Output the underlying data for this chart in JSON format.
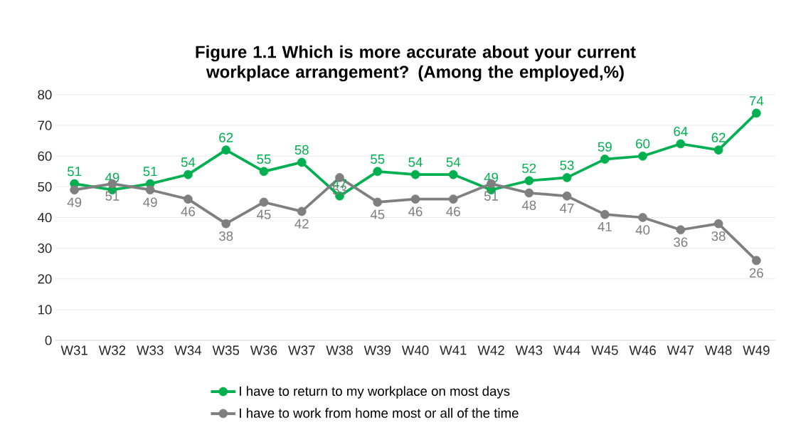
{
  "chart_data": {
    "type": "line",
    "title": "Figure 1.1 Which is more accurate about your current workplace arrangement? (Among the employed,%)",
    "categories": [
      "W31",
      "W32",
      "W33",
      "W34",
      "W35",
      "W36",
      "W37",
      "W38",
      "W39",
      "W40",
      "W41",
      "W42",
      "W43",
      "W44",
      "W45",
      "W46",
      "W47",
      "W48",
      "W49"
    ],
    "series": [
      {
        "name": "I have to return to my workplace on most days",
        "color": "#00b050",
        "values": [
          51,
          49,
          51,
          54,
          62,
          55,
          58,
          47,
          55,
          54,
          54,
          49,
          52,
          53,
          59,
          60,
          64,
          62,
          74
        ]
      },
      {
        "name": "I have to work from home most or all of the time",
        "color": "#7f7f7f",
        "values": [
          49,
          51,
          49,
          46,
          38,
          45,
          42,
          53,
          45,
          46,
          46,
          51,
          48,
          47,
          41,
          40,
          36,
          38,
          26
        ]
      }
    ],
    "ylim": [
      0,
      80
    ],
    "yticks": [
      0,
      10,
      20,
      30,
      40,
      50,
      60,
      70,
      80
    ],
    "grid": "y",
    "legend": "bottom",
    "marker": "circle",
    "line_style": "solid",
    "data_labels": true
  }
}
